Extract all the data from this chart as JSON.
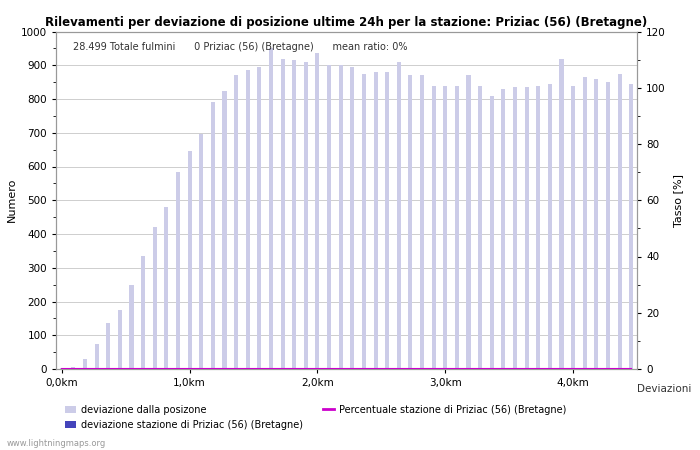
{
  "title": "Rilevamenti per deviazione di posizione ultime 24h per la stazione: Priziac (56) (Bretagne)",
  "annotation": "28.499 Totale fulmini      0 Priziac (56) (Bretagne)      mean ratio: 0%",
  "xlabel_ticks": [
    "0,0km",
    "1,0km",
    "2,0km",
    "3,0km",
    "4,0km"
  ],
  "ylabel_left": "Numero",
  "ylabel_right": "Tasso [%]",
  "xlabel_right": "Deviazioni",
  "ylim_left": [
    0,
    1000
  ],
  "ylim_right": [
    0,
    120
  ],
  "bar_color_light": "#cccce8",
  "bar_color_dark": "#4444bb",
  "line_color": "#cc00cc",
  "background_color": "#ffffff",
  "grid_color": "#bbbbbb",
  "watermark": "www.lightningmaps.org",
  "legend1_label": "deviazione dalla posizone",
  "legend2_label": "deviazione stazione di Priziac (56) (Bretagne)",
  "legend3_label": "Percentuale stazione di Priziac (56) (Bretagne)",
  "num_bars": 50,
  "bar_values": [
    2,
    5,
    30,
    75,
    135,
    175,
    250,
    335,
    420,
    480,
    585,
    645,
    695,
    790,
    825,
    870,
    885,
    895,
    950,
    920,
    915,
    910,
    935,
    900,
    900,
    895,
    875,
    880,
    880,
    910,
    870,
    870,
    840,
    840,
    840,
    870,
    840,
    810,
    830,
    835,
    835,
    840,
    845,
    920,
    840,
    865,
    860,
    850,
    875,
    845
  ],
  "station_bar_values": [
    0,
    0,
    0,
    0,
    0,
    0,
    0,
    0,
    0,
    0,
    0,
    0,
    0,
    0,
    0,
    0,
    0,
    0,
    0,
    0,
    0,
    0,
    0,
    0,
    0,
    0,
    0,
    0,
    0,
    0,
    0,
    0,
    0,
    0,
    0,
    0,
    0,
    0,
    0,
    0,
    0,
    0,
    0,
    0,
    0,
    0,
    0,
    0,
    0,
    0
  ],
  "percent_values": [
    0,
    0,
    0,
    0,
    0,
    0,
    0,
    0,
    0,
    0,
    0,
    0,
    0,
    0,
    0,
    0,
    0,
    0,
    0,
    0,
    0,
    0,
    0,
    0,
    0,
    0,
    0,
    0,
    0,
    0,
    0,
    0,
    0,
    0,
    0,
    0,
    0,
    0,
    0,
    0,
    0,
    0,
    0,
    0,
    0,
    0,
    0,
    0,
    0,
    0
  ]
}
